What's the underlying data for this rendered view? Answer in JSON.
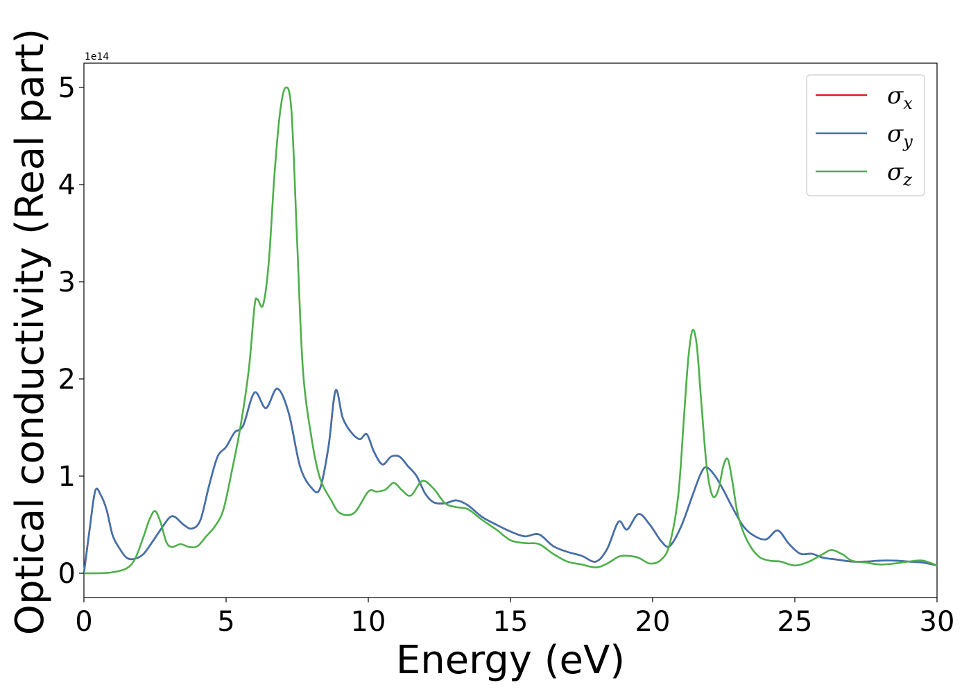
{
  "chart_data": {
    "type": "line",
    "title": "",
    "xlabel": "Energy (eV)",
    "ylabel": "Optical conductivity (Real part)",
    "y_offset_label": "1e14",
    "xlim": [
      0,
      30
    ],
    "ylim": [
      -0.25,
      5.25
    ],
    "x_ticks": [
      0,
      5,
      10,
      15,
      20,
      25,
      30
    ],
    "x_tick_labels": [
      "0",
      "5",
      "10",
      "15",
      "20",
      "25",
      "30"
    ],
    "y_ticks": [
      0,
      1,
      2,
      3,
      4,
      5
    ],
    "y_tick_labels": [
      "0",
      "1",
      "2",
      "3",
      "4",
      "5"
    ],
    "grid": false,
    "legend_position": "top-right",
    "series": [
      {
        "name": "σx",
        "legend_base": "σ",
        "legend_sub": "x",
        "color": "#e41a1c",
        "x": [
          0,
          0.2,
          0.4,
          0.6,
          0.8,
          1.0,
          1.2,
          1.5,
          1.8,
          2.1,
          2.4,
          2.7,
          3.0,
          3.2,
          3.5,
          3.8,
          4.1,
          4.4,
          4.7,
          5.0,
          5.3,
          5.6,
          6.0,
          6.4,
          6.8,
          7.2,
          7.6,
          8.0,
          8.3,
          8.6,
          8.85,
          9.1,
          9.4,
          9.7,
          9.95,
          10.2,
          10.5,
          10.8,
          11.1,
          11.4,
          11.7,
          12.0,
          12.3,
          12.7,
          13.1,
          13.5,
          14.0,
          14.5,
          15.0,
          15.5,
          16.0,
          16.5,
          17.0,
          17.5,
          18.0,
          18.4,
          18.8,
          19.1,
          19.5,
          19.9,
          20.3,
          20.6,
          21.0,
          21.4,
          21.7,
          21.9,
          22.2,
          22.5,
          22.8,
          23.2,
          23.6,
          24.0,
          24.4,
          24.8,
          25.2,
          25.6,
          26.0,
          26.5,
          27.0,
          27.5,
          28.0,
          28.5,
          29.0,
          29.5,
          30.0
        ],
        "y": [
          0,
          0.45,
          0.85,
          0.8,
          0.65,
          0.4,
          0.28,
          0.16,
          0.15,
          0.2,
          0.32,
          0.45,
          0.57,
          0.58,
          0.5,
          0.46,
          0.55,
          0.9,
          1.2,
          1.3,
          1.45,
          1.52,
          1.86,
          1.7,
          1.9,
          1.65,
          1.1,
          0.88,
          0.87,
          1.3,
          1.88,
          1.6,
          1.45,
          1.38,
          1.43,
          1.25,
          1.12,
          1.2,
          1.2,
          1.1,
          1.0,
          0.82,
          0.73,
          0.72,
          0.75,
          0.7,
          0.58,
          0.5,
          0.43,
          0.38,
          0.4,
          0.28,
          0.22,
          0.18,
          0.12,
          0.25,
          0.53,
          0.45,
          0.61,
          0.5,
          0.33,
          0.28,
          0.48,
          0.8,
          1.03,
          1.09,
          1.0,
          0.85,
          0.68,
          0.48,
          0.38,
          0.35,
          0.44,
          0.3,
          0.2,
          0.2,
          0.16,
          0.14,
          0.12,
          0.12,
          0.13,
          0.13,
          0.12,
          0.11,
          0.08
        ]
      },
      {
        "name": "σy",
        "legend_base": "σ",
        "legend_sub": "y",
        "color": "#3f72ad",
        "x": [
          0,
          0.2,
          0.4,
          0.6,
          0.8,
          1.0,
          1.2,
          1.5,
          1.8,
          2.1,
          2.4,
          2.7,
          3.0,
          3.2,
          3.5,
          3.8,
          4.1,
          4.4,
          4.7,
          5.0,
          5.3,
          5.6,
          6.0,
          6.4,
          6.8,
          7.2,
          7.6,
          8.0,
          8.3,
          8.6,
          8.85,
          9.1,
          9.4,
          9.7,
          9.95,
          10.2,
          10.5,
          10.8,
          11.1,
          11.4,
          11.7,
          12.0,
          12.3,
          12.7,
          13.1,
          13.5,
          14.0,
          14.5,
          15.0,
          15.5,
          16.0,
          16.5,
          17.0,
          17.5,
          18.0,
          18.4,
          18.8,
          19.1,
          19.5,
          19.9,
          20.3,
          20.6,
          21.0,
          21.4,
          21.7,
          21.9,
          22.2,
          22.5,
          22.8,
          23.2,
          23.6,
          24.0,
          24.4,
          24.8,
          25.2,
          25.6,
          26.0,
          26.5,
          27.0,
          27.5,
          28.0,
          28.5,
          29.0,
          29.5,
          30.0
        ],
        "y": [
          0,
          0.45,
          0.85,
          0.8,
          0.65,
          0.4,
          0.28,
          0.16,
          0.15,
          0.2,
          0.32,
          0.45,
          0.57,
          0.58,
          0.5,
          0.46,
          0.55,
          0.9,
          1.2,
          1.3,
          1.45,
          1.52,
          1.86,
          1.7,
          1.9,
          1.65,
          1.1,
          0.88,
          0.87,
          1.3,
          1.88,
          1.6,
          1.45,
          1.38,
          1.43,
          1.25,
          1.12,
          1.2,
          1.2,
          1.1,
          1.0,
          0.82,
          0.73,
          0.72,
          0.75,
          0.7,
          0.58,
          0.5,
          0.43,
          0.38,
          0.4,
          0.28,
          0.22,
          0.18,
          0.12,
          0.25,
          0.53,
          0.45,
          0.61,
          0.5,
          0.33,
          0.28,
          0.48,
          0.8,
          1.03,
          1.09,
          1.0,
          0.85,
          0.68,
          0.48,
          0.38,
          0.35,
          0.44,
          0.3,
          0.2,
          0.2,
          0.16,
          0.14,
          0.12,
          0.12,
          0.13,
          0.13,
          0.12,
          0.11,
          0.08
        ]
      },
      {
        "name": "σz",
        "legend_base": "σ",
        "legend_sub": "z",
        "color": "#4daf4a",
        "x": [
          0,
          0.5,
          1.0,
          1.5,
          1.8,
          2.1,
          2.3,
          2.5,
          2.7,
          2.9,
          3.1,
          3.4,
          3.7,
          4.0,
          4.3,
          4.6,
          4.9,
          5.2,
          5.5,
          5.8,
          6.0,
          6.1,
          6.3,
          6.5,
          6.7,
          6.9,
          7.1,
          7.3,
          7.5,
          7.7,
          8.0,
          8.3,
          8.7,
          9.0,
          9.5,
          10.0,
          10.3,
          10.6,
          10.9,
          11.2,
          11.5,
          11.9,
          12.3,
          12.7,
          13.1,
          13.5,
          14.0,
          14.5,
          15.0,
          15.5,
          16.0,
          16.5,
          17.0,
          17.5,
          18.0,
          18.4,
          18.8,
          19.1,
          19.5,
          19.9,
          20.3,
          20.6,
          20.9,
          21.1,
          21.25,
          21.4,
          21.55,
          21.7,
          21.9,
          22.1,
          22.3,
          22.5,
          22.65,
          22.8,
          23.0,
          23.3,
          23.7,
          24.1,
          24.5,
          25.0,
          25.5,
          26.0,
          26.3,
          26.7,
          27.0,
          27.5,
          28.0,
          28.5,
          29.0,
          29.5,
          30.0
        ],
        "y": [
          0,
          0,
          0.01,
          0.05,
          0.15,
          0.38,
          0.55,
          0.64,
          0.52,
          0.32,
          0.27,
          0.3,
          0.27,
          0.28,
          0.38,
          0.48,
          0.65,
          1.05,
          1.5,
          2.1,
          2.75,
          2.82,
          2.76,
          3.2,
          4.1,
          4.75,
          5.0,
          4.75,
          3.4,
          2.1,
          1.4,
          0.98,
          0.75,
          0.62,
          0.62,
          0.84,
          0.84,
          0.86,
          0.93,
          0.85,
          0.8,
          0.95,
          0.87,
          0.72,
          0.68,
          0.66,
          0.55,
          0.45,
          0.34,
          0.31,
          0.3,
          0.2,
          0.12,
          0.09,
          0.06,
          0.1,
          0.17,
          0.18,
          0.16,
          0.1,
          0.14,
          0.3,
          0.8,
          1.6,
          2.2,
          2.5,
          2.35,
          1.8,
          1.1,
          0.8,
          0.85,
          1.12,
          1.17,
          0.95,
          0.6,
          0.35,
          0.18,
          0.13,
          0.12,
          0.08,
          0.12,
          0.2,
          0.24,
          0.19,
          0.13,
          0.11,
          0.09,
          0.1,
          0.12,
          0.13,
          0.08
        ]
      }
    ]
  }
}
